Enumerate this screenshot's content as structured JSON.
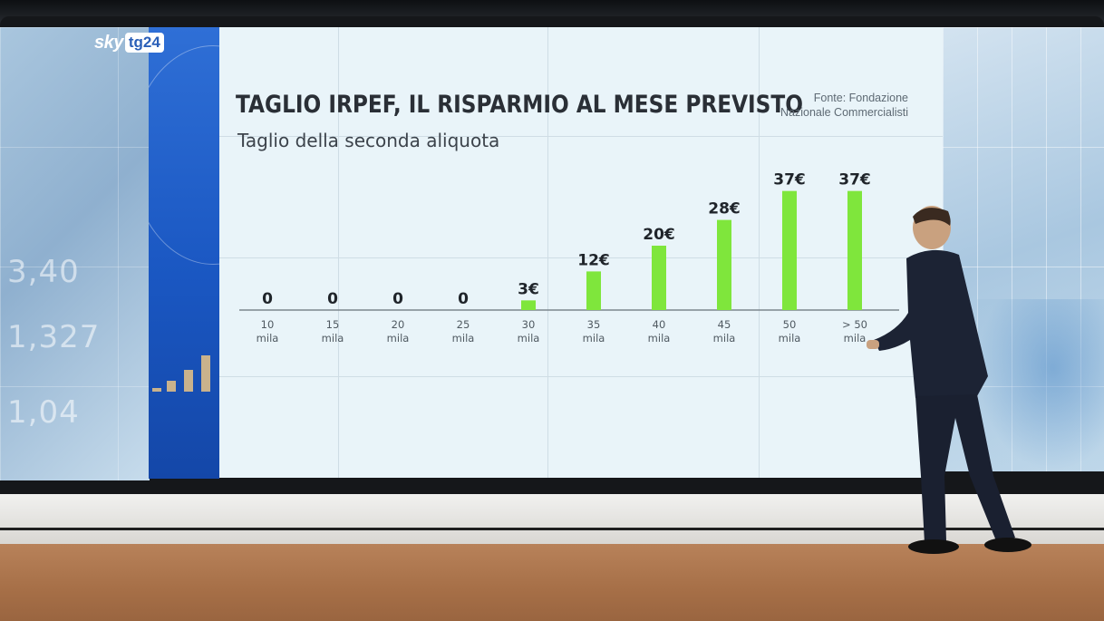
{
  "broadcaster": {
    "logo_brand": "sky",
    "logo_channel": "tg24"
  },
  "header": {
    "title": "TAGLIO IRPEF, IL RISPARMIO AL MESE PREVISTO",
    "subtitle": "Taglio della seconda aliquota",
    "source_line1": "Fonte: Fondazione",
    "source_line2": "Nazionale Commercialisti"
  },
  "chart_data": {
    "type": "bar",
    "title": "TAGLIO IRPEF, IL RISPARMIO AL MESE PREVISTO",
    "subtitle": "Taglio della seconda aliquota",
    "categories": [
      "10",
      "15",
      "20",
      "25",
      "30",
      "35",
      "40",
      "45",
      "50",
      "> 50"
    ],
    "category_unit": "mila",
    "values": [
      0,
      0,
      0,
      0,
      3,
      12,
      20,
      28,
      37,
      37
    ],
    "data_labels": [
      "0",
      "0",
      "0",
      "0",
      "3€",
      "12€",
      "20€",
      "28€",
      "37€",
      "37€"
    ],
    "xlabel": "",
    "ylabel": "",
    "ylim": [
      0,
      40
    ],
    "grid": false,
    "legend": "none",
    "bar_color": "#7fe63c",
    "value_label_color": "#1f242a",
    "axis_color": "#7c868e"
  },
  "colors": {
    "panel_background": "#e9f4f9",
    "accent_blue": "#1a57c2"
  }
}
